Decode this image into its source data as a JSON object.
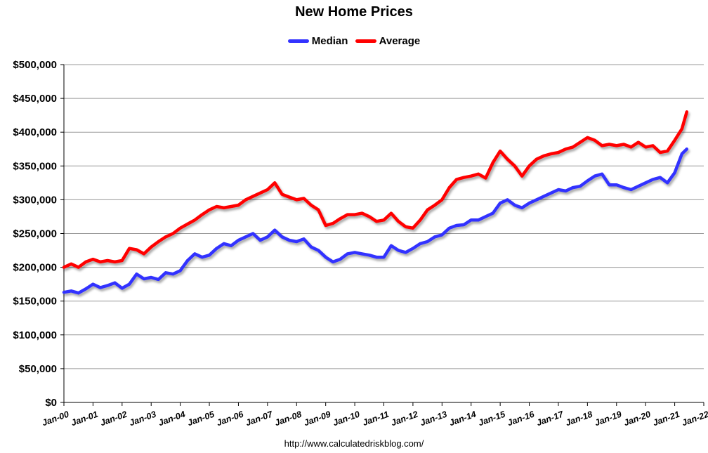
{
  "colors": {
    "median": "#3333ff",
    "average": "#ff0000",
    "grid": "#999999"
  },
  "source_url": "http://www.calculatedriskblog.com/",
  "chart_data": {
    "type": "line",
    "title": "New Home Prices",
    "xlabel": "",
    "ylabel": "",
    "legend_position": "top-center",
    "grid": true,
    "ylim": [
      0,
      500000
    ],
    "xlim": [
      "Jan-00",
      "Jan-22"
    ],
    "x_tick_labels": [
      "Jan-00",
      "Jan-01",
      "Jan-02",
      "Jan-03",
      "Jan-04",
      "Jan-05",
      "Jan-06",
      "Jan-07",
      "Jan-08",
      "Jan-09",
      "Jan-10",
      "Jan-11",
      "Jan-12",
      "Jan-13",
      "Jan-14",
      "Jan-15",
      "Jan-16",
      "Jan-17",
      "Jan-18",
      "Jan-19",
      "Jan-20",
      "Jan-21",
      "Jan-22"
    ],
    "y_tick_labels": [
      "$0",
      "$50,000",
      "$100,000",
      "$150,000",
      "$200,000",
      "$250,000",
      "$300,000",
      "$350,000",
      "$400,000",
      "$450,000",
      "$500,000"
    ],
    "x": [
      "Jan-00",
      "Apr-00",
      "Jul-00",
      "Oct-00",
      "Jan-01",
      "Apr-01",
      "Jul-01",
      "Oct-01",
      "Jan-02",
      "Apr-02",
      "Jul-02",
      "Oct-02",
      "Jan-03",
      "Apr-03",
      "Jul-03",
      "Oct-03",
      "Jan-04",
      "Apr-04",
      "Jul-04",
      "Oct-04",
      "Jan-05",
      "Apr-05",
      "Jul-05",
      "Oct-05",
      "Jan-06",
      "Apr-06",
      "Jul-06",
      "Oct-06",
      "Jan-07",
      "Apr-07",
      "Jul-07",
      "Oct-07",
      "Jan-08",
      "Apr-08",
      "Jul-08",
      "Oct-08",
      "Jan-09",
      "Apr-09",
      "Jul-09",
      "Oct-09",
      "Jan-10",
      "Apr-10",
      "Jul-10",
      "Oct-10",
      "Jan-11",
      "Apr-11",
      "Jul-11",
      "Oct-11",
      "Jan-12",
      "Apr-12",
      "Jul-12",
      "Oct-12",
      "Jan-13",
      "Apr-13",
      "Jul-13",
      "Oct-13",
      "Jan-14",
      "Apr-14",
      "Jul-14",
      "Oct-14",
      "Jan-15",
      "Apr-15",
      "Jul-15",
      "Oct-15",
      "Jan-16",
      "Apr-16",
      "Jul-16",
      "Oct-16",
      "Jan-17",
      "Apr-17",
      "Jul-17",
      "Oct-17",
      "Jan-18",
      "Apr-18",
      "Jul-18",
      "Oct-18",
      "Jan-19",
      "Apr-19",
      "Jul-19",
      "Oct-19",
      "Jan-20",
      "Apr-20",
      "Jul-20",
      "Oct-20",
      "Jan-21",
      "Apr-21",
      "Jun-21"
    ],
    "series": [
      {
        "name": "Median",
        "values": [
          163000,
          165000,
          162000,
          168000,
          175000,
          170000,
          173000,
          177000,
          169000,
          175000,
          190000,
          183000,
          185000,
          182000,
          192000,
          190000,
          195000,
          210000,
          220000,
          215000,
          218000,
          228000,
          235000,
          232000,
          240000,
          245000,
          250000,
          240000,
          245000,
          255000,
          245000,
          240000,
          238000,
          242000,
          230000,
          225000,
          215000,
          208000,
          212000,
          220000,
          222000,
          220000,
          218000,
          215000,
          215000,
          232000,
          225000,
          222000,
          228000,
          235000,
          238000,
          245000,
          248000,
          258000,
          262000,
          263000,
          270000,
          270000,
          275000,
          280000,
          295000,
          300000,
          292000,
          288000,
          295000,
          300000,
          305000,
          310000,
          315000,
          313000,
          318000,
          320000,
          328000,
          335000,
          338000,
          322000,
          322000,
          318000,
          315000,
          320000,
          325000,
          330000,
          333000,
          325000,
          340000,
          368000,
          375000
        ]
      },
      {
        "name": "Average",
        "values": [
          200000,
          205000,
          200000,
          208000,
          212000,
          208000,
          210000,
          208000,
          210000,
          228000,
          226000,
          220000,
          230000,
          238000,
          245000,
          250000,
          258000,
          264000,
          270000,
          278000,
          285000,
          290000,
          288000,
          290000,
          292000,
          300000,
          305000,
          310000,
          315000,
          325000,
          308000,
          304000,
          300000,
          302000,
          292000,
          285000,
          262000,
          265000,
          272000,
          278000,
          278000,
          280000,
          275000,
          268000,
          270000,
          280000,
          268000,
          260000,
          258000,
          270000,
          285000,
          292000,
          300000,
          318000,
          330000,
          333000,
          335000,
          338000,
          332000,
          355000,
          372000,
          360000,
          350000,
          335000,
          350000,
          360000,
          365000,
          368000,
          370000,
          375000,
          378000,
          385000,
          392000,
          388000,
          380000,
          382000,
          380000,
          382000,
          378000,
          385000,
          378000,
          380000,
          370000,
          372000,
          388000,
          405000,
          430000
        ]
      }
    ]
  }
}
